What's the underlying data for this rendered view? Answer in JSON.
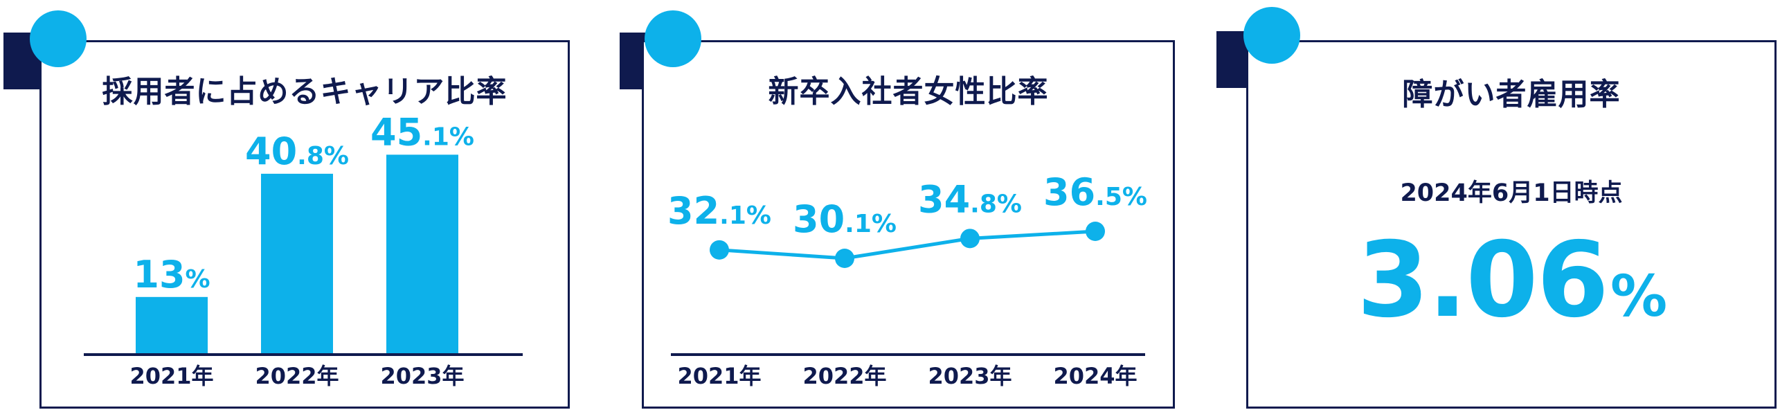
{
  "colors": {
    "navy": "#0f1a4e",
    "accent": "#0db1ea"
  },
  "chart_data": [
    {
      "type": "bar",
      "title": "採用者に占めるキャリア比率",
      "categories": [
        "2021年",
        "2022年",
        "2023年"
      ],
      "values": [
        13,
        40.8,
        45.1
      ],
      "labels": [
        {
          "int": "13",
          "dec": "%"
        },
        {
          "int": "40",
          "dec": ".8%"
        },
        {
          "int": "45",
          "dec": ".1%"
        }
      ],
      "ylim": [
        0,
        50
      ]
    },
    {
      "type": "line",
      "title": "新卒入社者女性比率",
      "categories": [
        "2021年",
        "2022年",
        "2023年",
        "2024年"
      ],
      "values": [
        32.1,
        30.1,
        34.8,
        36.5
      ],
      "labels": [
        {
          "int": "32",
          "dec": ".1%"
        },
        {
          "int": "30",
          "dec": ".1%"
        },
        {
          "int": "34",
          "dec": ".8%"
        },
        {
          "int": "36",
          "dec": ".5%"
        }
      ]
    }
  ],
  "stat_card": {
    "title": "障がい者雇用率",
    "date": "2024年6月1日時点",
    "value": "3.06",
    "unit": "%"
  }
}
